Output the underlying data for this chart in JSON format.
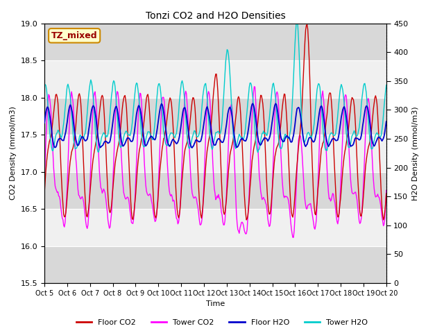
{
  "title": "Tonzi CO2 and H2O Densities",
  "xlabel": "Time",
  "ylabel_left": "CO2 Density (mmol/m3)",
  "ylabel_right": "H2O Density (mmol/m3)",
  "annotation": "TZ_mixed",
  "annotation_color": "#990000",
  "annotation_bg": "#ffffcc",
  "annotation_edge": "#cc8800",
  "ylim_left": [
    15.5,
    19.0
  ],
  "ylim_right": [
    0,
    450
  ],
  "x_tick_labels": [
    "Oct 5",
    "Oct 6",
    "Oct 7",
    "Oct 8",
    "Oct 9",
    "Oct 10",
    "Oct 11",
    "Oct 12",
    "Oct 13",
    "Oct 14",
    "Oct 15",
    "Oct 16",
    "Oct 17",
    "Oct 18",
    "Oct 19",
    "Oct 20"
  ],
  "colors": {
    "floor_co2": "#cc0000",
    "tower_co2": "#ff00ff",
    "floor_h2o": "#0000cc",
    "tower_h2o": "#00cccc"
  },
  "legend_labels": [
    "Floor CO2",
    "Tower CO2",
    "Floor H2O",
    "Tower H2O"
  ],
  "n_points": 480,
  "fig_bg": "#ffffff",
  "plot_bg_light": "#f0f0f0",
  "plot_bg_dark": "#e0e0e0",
  "grid_color": "#ffffff"
}
